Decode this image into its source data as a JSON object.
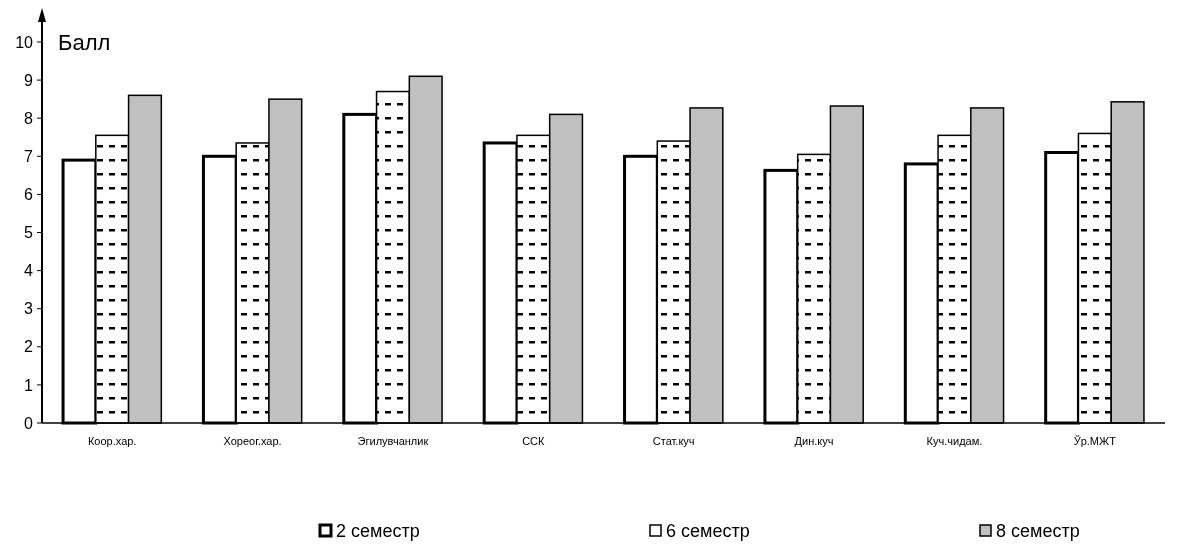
{
  "chart_data": {
    "type": "bar",
    "ylabel": "Балл",
    "categories": [
      "Коор.хар.",
      "Хореог.хар.",
      "Эгилувчанлик",
      "ССК",
      "Стат.куч",
      "Дин.куч",
      "Куч.чидам.",
      "Ўр.МЖТ"
    ],
    "series": [
      {
        "name": "2 семестр",
        "color": "#ffffff",
        "values": [
          6.9,
          7.0,
          8.1,
          7.35,
          7.0,
          6.63,
          6.8,
          7.1
        ]
      },
      {
        "name": "6 семестр",
        "color": "#ffffff",
        "values": [
          7.55,
          7.35,
          8.7,
          7.55,
          7.4,
          7.05,
          7.55,
          7.6
        ]
      },
      {
        "name": "8 семестр",
        "color": "#c0c0c0",
        "values": [
          8.6,
          8.5,
          9.1,
          8.1,
          8.27,
          8.32,
          8.27,
          8.43
        ]
      }
    ],
    "ylim": [
      0,
      10
    ],
    "yticks": [
      0,
      1,
      2,
      3,
      4,
      5,
      6,
      7,
      8,
      9,
      10
    ],
    "grid": false,
    "legend": "bottom"
  }
}
